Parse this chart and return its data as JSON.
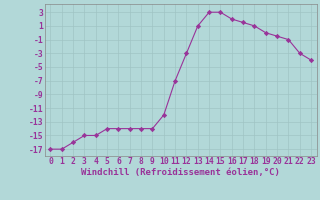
{
  "x": [
    0,
    1,
    2,
    3,
    4,
    5,
    6,
    7,
    8,
    9,
    10,
    11,
    12,
    13,
    14,
    15,
    16,
    17,
    18,
    19,
    20,
    21,
    22,
    23
  ],
  "y": [
    -17,
    -17,
    -16,
    -15,
    -15,
    -14,
    -14,
    -14,
    -14,
    -14,
    -12,
    -7,
    -3,
    1,
    3,
    3,
    2,
    1.5,
    1,
    0,
    -0.5,
    -1,
    -3,
    -4
  ],
  "line_color": "#993399",
  "marker": "D",
  "marker_size": 2.2,
  "bg_color": "#b2d8d8",
  "grid_color": "#a0c4c4",
  "xlabel": "Windchill (Refroidissement éolien,°C)",
  "xlabel_fontsize": 6.5,
  "ylabel_color": "#993399",
  "yticks": [
    3,
    1,
    -1,
    -3,
    -5,
    -7,
    -9,
    -11,
    -13,
    -15,
    -17
  ],
  "xticks": [
    0,
    1,
    2,
    3,
    4,
    5,
    6,
    7,
    8,
    9,
    10,
    11,
    12,
    13,
    14,
    15,
    16,
    17,
    18,
    19,
    20,
    21,
    22,
    23
  ],
  "xlim": [
    -0.5,
    23.5
  ],
  "ylim": [
    -18,
    4.2
  ],
  "tick_fontsize": 5.8,
  "xlabel_fontsize_bold": true
}
